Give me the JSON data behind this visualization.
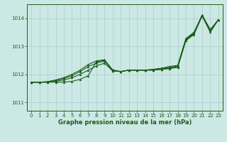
{
  "xlabel": "Graphe pression niveau de la mer (hPa)",
  "xlim": [
    -0.5,
    23.5
  ],
  "ylim": [
    1010.7,
    1014.5
  ],
  "yticks": [
    1011,
    1012,
    1013,
    1014
  ],
  "xticks": [
    0,
    1,
    2,
    3,
    4,
    5,
    6,
    7,
    8,
    9,
    10,
    11,
    12,
    13,
    14,
    15,
    16,
    17,
    18,
    19,
    20,
    21,
    22,
    23
  ],
  "background_color": "#cce8e4",
  "grid_color": "#aacccc",
  "line_color": "#1a5c1a",
  "lines": [
    [
      1011.72,
      1011.72,
      1011.72,
      1011.72,
      1011.72,
      1011.75,
      1011.82,
      1011.95,
      1012.45,
      1012.5,
      1012.12,
      1012.1,
      1012.15,
      1012.15,
      1012.15,
      1012.15,
      1012.18,
      1012.2,
      1012.25,
      1013.2,
      1013.42,
      1014.08,
      1013.5,
      1013.95
    ],
    [
      1011.72,
      1011.72,
      1011.72,
      1011.75,
      1011.8,
      1011.88,
      1012.0,
      1012.15,
      1012.3,
      1012.4,
      1012.12,
      1012.1,
      1012.15,
      1012.15,
      1012.15,
      1012.15,
      1012.18,
      1012.22,
      1012.27,
      1013.22,
      1013.45,
      1014.1,
      1013.55,
      1013.95
    ],
    [
      1011.72,
      1011.72,
      1011.73,
      1011.78,
      1011.85,
      1011.95,
      1012.1,
      1012.28,
      1012.4,
      1012.48,
      1012.14,
      1012.1,
      1012.15,
      1012.15,
      1012.15,
      1012.17,
      1012.2,
      1012.25,
      1012.3,
      1013.25,
      1013.48,
      1014.1,
      1013.58,
      1013.95
    ],
    [
      1011.72,
      1011.72,
      1011.74,
      1011.8,
      1011.88,
      1012.0,
      1012.15,
      1012.35,
      1012.48,
      1012.52,
      1012.16,
      1012.1,
      1012.15,
      1012.15,
      1012.15,
      1012.18,
      1012.22,
      1012.28,
      1012.32,
      1013.28,
      1013.5,
      1014.12,
      1013.6,
      1013.95
    ]
  ]
}
